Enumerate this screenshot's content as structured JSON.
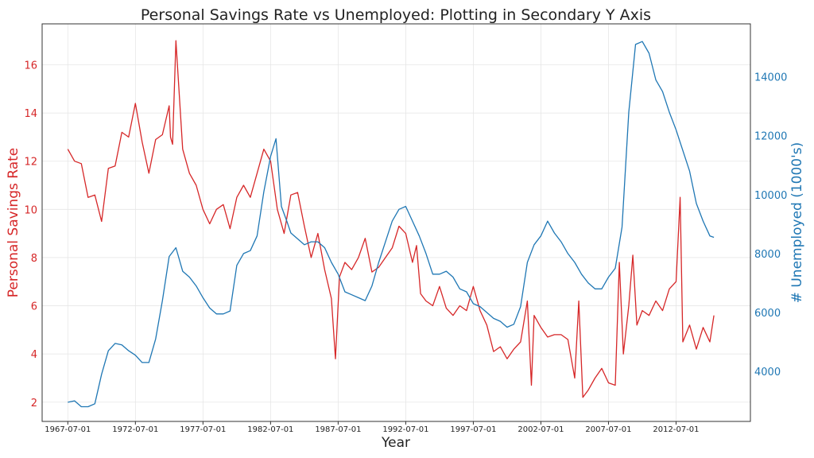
{
  "chart_data": {
    "type": "line",
    "title": "Personal Savings Rate vs Unemployed: Plotting in Secondary Y Axis",
    "xlabel": "Year",
    "ylabel_left": "Personal Savings Rate",
    "ylabel_right": "# Unemployed (1000's)",
    "x_ticks": [
      "1967-07-01",
      "1972-07-01",
      "1977-07-01",
      "1982-07-01",
      "1987-07-01",
      "1992-07-01",
      "1997-07-01",
      "2002-07-01",
      "2007-07-01",
      "2012-07-01"
    ],
    "x_tick_years": [
      1967.5,
      1972.5,
      1977.5,
      1982.5,
      1987.5,
      1992.5,
      1997.5,
      2002.5,
      2007.5,
      2012.5
    ],
    "xlim": [
      1965.6,
      2018.0
    ],
    "ylim_left": [
      1.2,
      17.7
    ],
    "ylim_right": [
      2300,
      15800
    ],
    "y_ticks_left": [
      2,
      4,
      6,
      8,
      10,
      12,
      14,
      16
    ],
    "y_ticks_right": [
      4000,
      6000,
      8000,
      10000,
      12000,
      14000
    ],
    "grid": true,
    "colors": {
      "left": "#d62728",
      "right": "#1f77b4"
    },
    "series": [
      {
        "axis": "left",
        "color": "#d62728",
        "x": [
          1967.5,
          1968.0,
          1968.5,
          1969.0,
          1969.5,
          1970.0,
          1970.5,
          1971.0,
          1971.5,
          1972.0,
          1972.5,
          1973.0,
          1973.5,
          1974.0,
          1974.5,
          1975.0,
          1975.1,
          1975.25,
          1975.5,
          1976.0,
          1976.5,
          1977.0,
          1977.5,
          1978.0,
          1978.5,
          1979.0,
          1979.5,
          1980.0,
          1980.5,
          1981.0,
          1981.5,
          1982.0,
          1982.5,
          1983.0,
          1983.5,
          1984.0,
          1984.5,
          1985.0,
          1985.5,
          1986.0,
          1986.5,
          1987.0,
          1987.3,
          1987.6,
          1988.0,
          1988.5,
          1989.0,
          1989.5,
          1990.0,
          1990.5,
          1991.0,
          1991.5,
          1992.0,
          1992.5,
          1993.0,
          1993.3,
          1993.6,
          1994.0,
          1994.5,
          1995.0,
          1995.5,
          1996.0,
          1996.5,
          1997.0,
          1997.5,
          1998.0,
          1998.5,
          1999.0,
          1999.5,
          2000.0,
          2000.5,
          2001.0,
          2001.5,
          2001.8,
          2002.0,
          2002.5,
          2003.0,
          2003.5,
          2004.0,
          2004.5,
          2005.0,
          2005.3,
          2005.6,
          2006.0,
          2006.5,
          2007.0,
          2007.5,
          2008.0,
          2008.3,
          2008.6,
          2009.0,
          2009.3,
          2009.6,
          2010.0,
          2010.5,
          2011.0,
          2011.5,
          2012.0,
          2012.5,
          2012.8,
          2013.0,
          2013.5,
          2014.0,
          2014.5,
          2015.0,
          2015.3
        ],
        "values": [
          12.5,
          12.0,
          11.9,
          10.5,
          10.6,
          9.5,
          11.7,
          11.8,
          13.2,
          13.0,
          14.4,
          12.8,
          11.5,
          12.9,
          13.1,
          14.3,
          13.0,
          12.7,
          17.0,
          12.5,
          11.5,
          11.0,
          10.0,
          9.4,
          10.0,
          10.2,
          9.2,
          10.5,
          11.0,
          10.5,
          11.5,
          12.5,
          12.0,
          10.0,
          9.0,
          10.6,
          10.7,
          9.3,
          8.0,
          9.0,
          7.5,
          6.3,
          3.8,
          7.2,
          7.8,
          7.5,
          8.0,
          8.8,
          7.4,
          7.6,
          8.0,
          8.4,
          9.3,
          9.0,
          7.8,
          8.5,
          6.5,
          6.2,
          6.0,
          6.8,
          5.9,
          5.6,
          6.0,
          5.8,
          6.8,
          5.8,
          5.2,
          4.1,
          4.3,
          3.8,
          4.2,
          4.5,
          6.2,
          2.7,
          5.6,
          5.1,
          4.7,
          4.8,
          4.8,
          4.6,
          3.0,
          6.2,
          2.2,
          2.5,
          3.0,
          3.4,
          2.8,
          2.7,
          7.8,
          4.0,
          6.0,
          8.1,
          5.2,
          5.8,
          5.6,
          6.2,
          5.8,
          6.7,
          7.0,
          10.5,
          4.5,
          5.2,
          4.2,
          5.1,
          4.5,
          5.6
        ]
      },
      {
        "axis": "right",
        "color": "#1f77b4",
        "x": [
          1967.5,
          1968.0,
          1968.5,
          1969.0,
          1969.5,
          1970.0,
          1970.5,
          1971.0,
          1971.5,
          1972.0,
          1972.5,
          1973.0,
          1973.5,
          1974.0,
          1974.5,
          1975.0,
          1975.5,
          1976.0,
          1976.5,
          1977.0,
          1977.5,
          1978.0,
          1978.5,
          1979.0,
          1979.5,
          1980.0,
          1980.5,
          1981.0,
          1981.5,
          1982.0,
          1982.5,
          1982.9,
          1983.3,
          1983.7,
          1984.0,
          1984.5,
          1985.0,
          1985.5,
          1986.0,
          1986.5,
          1987.0,
          1987.5,
          1988.0,
          1988.5,
          1989.0,
          1989.5,
          1990.0,
          1990.5,
          1991.0,
          1991.5,
          1992.0,
          1992.5,
          1993.0,
          1993.5,
          1994.0,
          1994.5,
          1995.0,
          1995.5,
          1996.0,
          1996.5,
          1997.0,
          1997.5,
          1998.0,
          1998.5,
          1999.0,
          1999.5,
          2000.0,
          2000.5,
          2001.0,
          2001.5,
          2002.0,
          2002.5,
          2003.0,
          2003.5,
          2004.0,
          2004.5,
          2005.0,
          2005.5,
          2006.0,
          2006.5,
          2007.0,
          2007.5,
          2008.0,
          2008.5,
          2009.0,
          2009.5,
          2010.0,
          2010.5,
          2011.0,
          2011.5,
          2012.0,
          2012.5,
          2013.0,
          2013.5,
          2014.0,
          2014.5,
          2015.0,
          2015.3
        ],
        "values": [
          2950,
          3000,
          2800,
          2800,
          2900,
          3900,
          4700,
          4950,
          4900,
          4700,
          4550,
          4300,
          4300,
          5100,
          6400,
          7900,
          8200,
          7400,
          7200,
          6900,
          6500,
          6150,
          5950,
          5950,
          6050,
          7600,
          8000,
          8100,
          8600,
          10100,
          11300,
          11900,
          9600,
          9100,
          8700,
          8500,
          8300,
          8400,
          8400,
          8200,
          7700,
          7300,
          6700,
          6600,
          6500,
          6400,
          6900,
          7700,
          8400,
          9100,
          9500,
          9600,
          9100,
          8600,
          8000,
          7300,
          7300,
          7400,
          7200,
          6800,
          6700,
          6300,
          6200,
          6000,
          5800,
          5700,
          5500,
          5600,
          6200,
          7700,
          8300,
          8600,
          9100,
          8700,
          8400,
          8000,
          7700,
          7300,
          7000,
          6800,
          6800,
          7200,
          7500,
          8900,
          12800,
          15100,
          15200,
          14800,
          13900,
          13500,
          12800,
          12200,
          11500,
          10800,
          9700,
          9100,
          8600,
          8550
        ]
      }
    ]
  }
}
